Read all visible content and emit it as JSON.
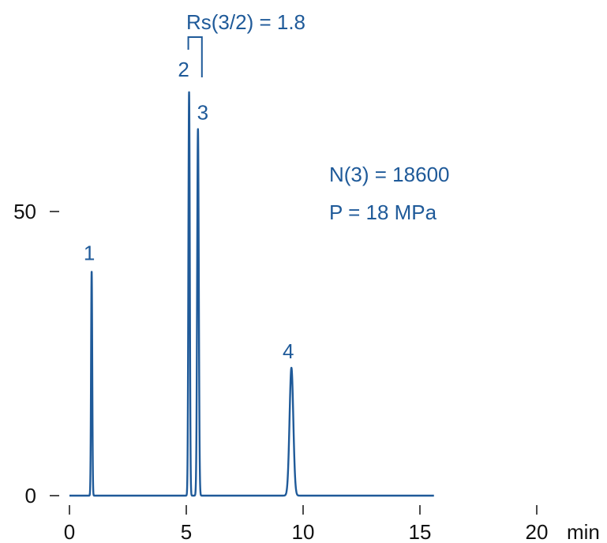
{
  "colors": {
    "trace": "#1f5a99",
    "axis": "#111111",
    "annotation": "#1f5a99"
  },
  "chart_data": {
    "type": "line",
    "title": "",
    "xlabel": "",
    "ylabel": "",
    "x_unit": "min",
    "xlim": [
      0,
      20
    ],
    "ylim": [
      0,
      50
    ],
    "x_ticks": [
      0,
      5,
      10,
      15,
      20
    ],
    "x_tick_labels": [
      "0",
      "5",
      "10",
      "15",
      "20"
    ],
    "y_ticks": [
      0,
      50
    ],
    "y_tick_labels": [
      "0",
      "50"
    ],
    "grid": false,
    "legend": "none",
    "series": [
      {
        "baseline": 0,
        "x_end": 15.6,
        "peaks": [
          {
            "label": "1",
            "x": 0.95,
            "y": 39.5,
            "width": 0.025
          },
          {
            "label": "2",
            "x": 5.12,
            "y": 71.0,
            "width": 0.03
          },
          {
            "label": "3",
            "x": 5.5,
            "y": 64.5,
            "width": 0.035
          },
          {
            "label": "4",
            "x": 9.5,
            "y": 22.5,
            "width": 0.08
          }
        ]
      }
    ],
    "annotations": {
      "resolution": "Rs(3/2) = 1.8",
      "plates": "N(3) = 18600",
      "pressure": "P = 18 MPa"
    }
  }
}
